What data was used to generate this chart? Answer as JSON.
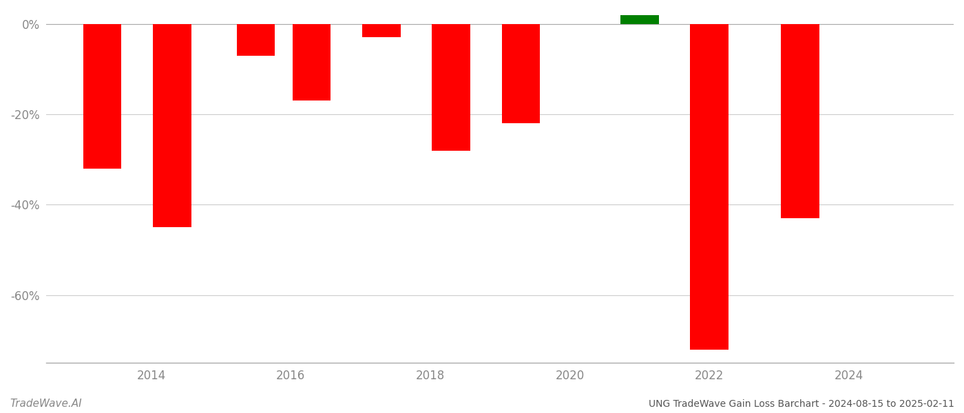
{
  "bar_positions": [
    2013.3,
    2014.3,
    2015.5,
    2016.3,
    2017.3,
    2018.3,
    2019.3,
    2021.0,
    2022.0,
    2023.3
  ],
  "values": [
    -0.32,
    -0.45,
    -0.07,
    -0.17,
    -0.03,
    -0.28,
    -0.22,
    0.02,
    -0.72,
    -0.43
  ],
  "bar_colors": [
    "#ff0000",
    "#ff0000",
    "#ff0000",
    "#ff0000",
    "#ff0000",
    "#ff0000",
    "#ff0000",
    "#008000",
    "#ff0000",
    "#ff0000"
  ],
  "title": "UNG TradeWave Gain Loss Barchart - 2024-08-15 to 2025-02-11",
  "watermark": "TradeWave.AI",
  "xlim": [
    2012.5,
    2025.5
  ],
  "xticks": [
    2014,
    2016,
    2018,
    2020,
    2022,
    2024
  ],
  "ylim": [
    -0.75,
    0.03
  ],
  "yticks": [
    0.0,
    -0.2,
    -0.4,
    -0.6
  ],
  "background_color": "#ffffff",
  "grid_color": "#cccccc",
  "text_color": "#888888",
  "title_color": "#555555",
  "bar_width": 0.55
}
